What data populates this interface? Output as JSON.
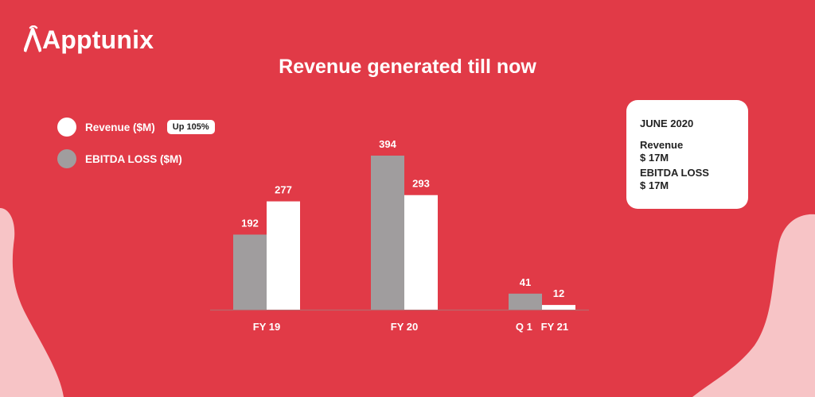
{
  "brand": {
    "name": "Apptunix"
  },
  "header": {
    "title": "Revenue generated till now"
  },
  "legend": {
    "revenue_label": "Revenue ($M)",
    "revenue_badge": "Up 105%",
    "ebitda_label": "EBITDA LOSS ($M)"
  },
  "info_card": {
    "date": "JUNE 2020",
    "revenue_label": "Revenue",
    "revenue_value": "$ 17M",
    "ebitda_label": "EBITDA LOSS",
    "ebitda_value": "$ 17M"
  },
  "colors": {
    "background": "#e13a47",
    "blob": "#f7c4c6",
    "revenue_bar": "#ffffff",
    "ebitda_bar": "#a09d9e"
  },
  "chart_data": {
    "type": "bar",
    "title": "Revenue generated till now",
    "xlabel": "",
    "ylabel": "",
    "categories": [
      "FY 19",
      "FY 20",
      "Q 1   FY 21"
    ],
    "series": [
      {
        "name": "EBITDA LOSS ($M)",
        "values": [
          192,
          394,
          41
        ]
      },
      {
        "name": "Revenue ($M)",
        "values": [
          277,
          293,
          12
        ]
      }
    ],
    "grid": false,
    "legend_position": "top-left"
  }
}
